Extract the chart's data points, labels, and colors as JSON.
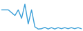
{
  "x": [
    0,
    1,
    2,
    3,
    4,
    5,
    6,
    7,
    8,
    9,
    10,
    11,
    12,
    13,
    14,
    15,
    16,
    17,
    18,
    19,
    20,
    21,
    22,
    23,
    24
  ],
  "y": [
    7,
    7,
    7,
    6,
    5,
    7,
    4,
    9,
    2,
    7,
    1,
    0.2,
    0.3,
    0.8,
    0.2,
    0.7,
    0.2,
    0.7,
    0.3,
    0.7,
    0.3,
    0.7,
    0.3,
    0.7,
    0.3
  ],
  "line_color": "#3a9fd8",
  "linewidth": 1.0,
  "background_color": "#ffffff",
  "xlim": [
    -0.5,
    24.5
  ],
  "ylim": [
    -0.5,
    10.5
  ]
}
